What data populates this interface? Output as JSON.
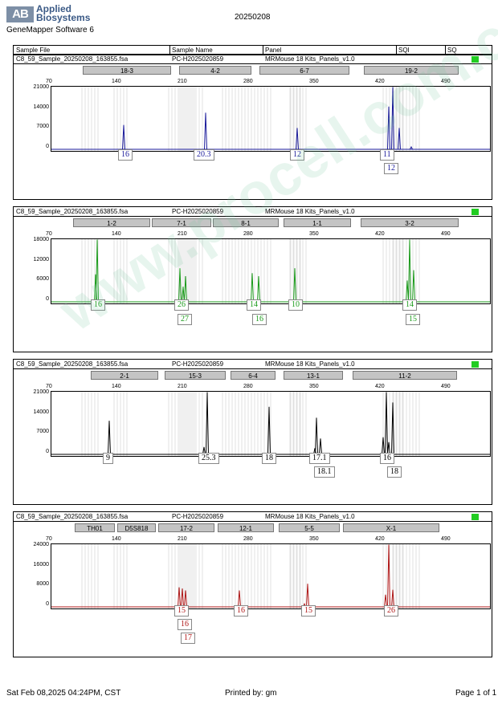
{
  "header": {
    "brand_mark": "AB",
    "brand_line1": "Applied",
    "brand_line2": "Biosystems",
    "software": "GeneMapper Software 6",
    "date": "20250208"
  },
  "columns": {
    "sample_file": "Sample File",
    "sample_name": "Sample Name",
    "panel": "Panel",
    "sqi": "SQI",
    "sq": "SQ"
  },
  "sample_file": "C8_59_Sample_20250208_163855.fsa",
  "sample_name": "PC-H2025020859",
  "panel_name": "MRMouse 18 Kits_Panels_v1.0",
  "x_ticks": [
    "70",
    "140",
    "210",
    "280",
    "350",
    "420",
    "490"
  ],
  "panels": [
    {
      "color": "#1a1a9a",
      "markers": [
        "18-3",
        "4-2",
        "6-7",
        "19-2"
      ],
      "y_ticks": [
        "21000",
        "14000",
        "7000",
        "0"
      ],
      "alleles": [
        [
          "16"
        ],
        [
          "20.3"
        ],
        [
          "12"
        ],
        [
          "11",
          "12"
        ]
      ]
    },
    {
      "color": "#1a9a1a",
      "markers": [
        "1-2",
        "7-1",
        "8-1",
        "1-1",
        "3-2"
      ],
      "y_ticks": [
        "18000",
        "12000",
        "6000",
        "0"
      ],
      "alleles": [
        [
          "16"
        ],
        [
          "26",
          "27"
        ],
        [
          "14",
          "16"
        ],
        [
          "10"
        ],
        [
          "14",
          "15"
        ]
      ]
    },
    {
      "color": "#000000",
      "markers": [
        "2-1",
        "15-3",
        "6-4",
        "13-1",
        "11-2"
      ],
      "y_ticks": [
        "21000",
        "14000",
        "7000",
        "0"
      ],
      "alleles": [
        [
          "9"
        ],
        [
          "25.3"
        ],
        [
          "18"
        ],
        [
          "17.1",
          "18.1"
        ],
        [
          "16",
          "18"
        ]
      ]
    },
    {
      "color": "#b01818",
      "markers": [
        "TH01",
        "D5S818",
        "17-2",
        "12-1",
        "5-5",
        "X-1"
      ],
      "y_ticks": [
        "24000",
        "16000",
        "8000",
        "0"
      ],
      "alleles": [
        [
          "15",
          "16",
          "17"
        ],
        [
          "16"
        ],
        [
          "15"
        ],
        [
          "26"
        ]
      ]
    }
  ],
  "footer": {
    "printed_at": "Sat Feb 08,2025 04:24PM, CST",
    "printed_by": "Printed by: gm",
    "page": "Page 1 of 1"
  },
  "watermark": "www.procell.com.cn"
}
